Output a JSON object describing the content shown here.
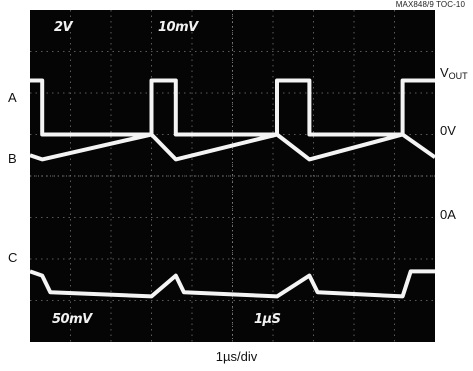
{
  "toc_id": "MAX848/9 TOC-10",
  "scope": {
    "top_left_scale": "2V",
    "top_mid_scale": "10mV",
    "bottom_left_scale": "50mV",
    "bottom_mid_scale": "1µS"
  },
  "traces": {
    "A": "A",
    "B": "B",
    "C": "C"
  },
  "right_labels": {
    "vout_main": "V",
    "vout_sub": "OUT",
    "zero_v": "0V",
    "zero_a": "0A"
  },
  "time_base": "1µs/div",
  "chart_data": {
    "type": "line",
    "title": "",
    "xlabel": "1µs/div",
    "ylabel": "",
    "divisions": {
      "x": 10,
      "y": 8
    },
    "grid": true,
    "background": "#050505",
    "trace_color": "#f4f4f4",
    "series": [
      {
        "name": "A",
        "scale": "2V",
        "points": [
          [
            0,
            1.7
          ],
          [
            0.3,
            1.7
          ],
          [
            0.3,
            3.0
          ],
          [
            3.0,
            3.0
          ],
          [
            3.0,
            1.7
          ],
          [
            3.6,
            1.7
          ],
          [
            3.6,
            3.0
          ],
          [
            6.1,
            3.0
          ],
          [
            6.1,
            1.7
          ],
          [
            6.9,
            1.7
          ],
          [
            6.9,
            3.0
          ],
          [
            9.2,
            3.0
          ],
          [
            9.2,
            1.7
          ],
          [
            10,
            1.7
          ]
        ]
      },
      {
        "name": "B",
        "scale": "10mV",
        "points": [
          [
            0,
            3.5
          ],
          [
            0.3,
            3.6
          ],
          [
            3.0,
            3.0
          ],
          [
            3.6,
            3.6
          ],
          [
            6.1,
            3.0
          ],
          [
            6.9,
            3.6
          ],
          [
            9.2,
            3.0
          ],
          [
            10,
            3.55
          ]
        ]
      },
      {
        "name": "C",
        "scale": "50mV",
        "points": [
          [
            0,
            6.3
          ],
          [
            0.3,
            6.4
          ],
          [
            0.5,
            6.8
          ],
          [
            3.0,
            6.9
          ],
          [
            3.6,
            6.4
          ],
          [
            3.8,
            6.8
          ],
          [
            6.1,
            6.9
          ],
          [
            6.9,
            6.4
          ],
          [
            7.1,
            6.8
          ],
          [
            9.2,
            6.9
          ],
          [
            9.4,
            6.3
          ],
          [
            10,
            6.3
          ]
        ]
      }
    ]
  }
}
